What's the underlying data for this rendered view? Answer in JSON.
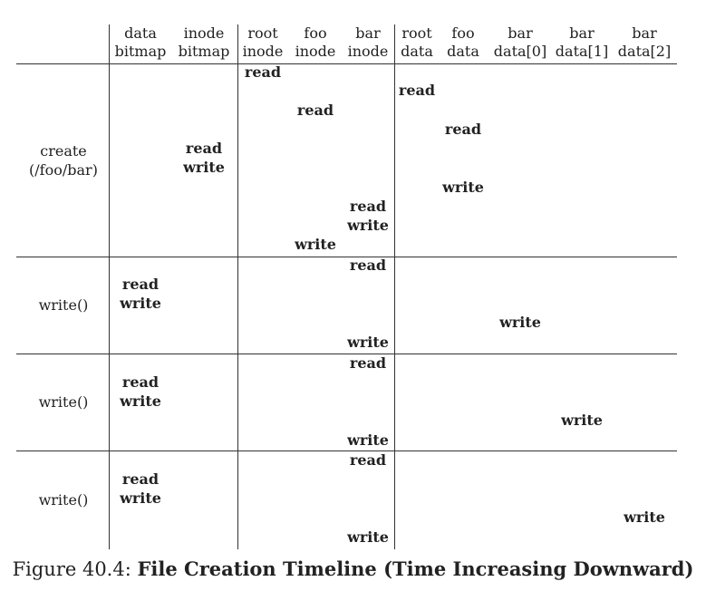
{
  "table": {
    "columns": [
      {
        "id": "data-bitmap",
        "line1": "data",
        "line2": "bitmap"
      },
      {
        "id": "inode-bitmap",
        "line1": "inode",
        "line2": "bitmap"
      },
      {
        "id": "root-inode",
        "line1": "root",
        "line2": "inode"
      },
      {
        "id": "foo-inode",
        "line1": "foo",
        "line2": "inode"
      },
      {
        "id": "bar-inode",
        "line1": "bar",
        "line2": "inode"
      },
      {
        "id": "root-data",
        "line1": "root",
        "line2": "data"
      },
      {
        "id": "foo-data",
        "line1": "foo",
        "line2": "data"
      },
      {
        "id": "bar-data0",
        "line1": "bar",
        "line2": "data[0]"
      },
      {
        "id": "bar-data1",
        "line1": "bar",
        "line2": "data[1]"
      },
      {
        "id": "bar-data2",
        "line1": "bar",
        "line2": "data[2]"
      }
    ],
    "groups": [
      {
        "label": [
          "create",
          "(/foo/bar)"
        ],
        "events": [
          {
            "col": 2,
            "ops": [
              "read"
            ]
          },
          {
            "col": 5,
            "ops": [
              "read"
            ]
          },
          {
            "col": 3,
            "ops": [
              "read"
            ]
          },
          {
            "col": 6,
            "ops": [
              "read"
            ]
          },
          {
            "col": 1,
            "ops": [
              "read",
              "write"
            ]
          },
          {
            "col": 6,
            "ops": [
              "write"
            ]
          },
          {
            "col": 4,
            "ops": [
              "read",
              "write"
            ]
          },
          {
            "col": 3,
            "ops": [
              "write"
            ]
          }
        ]
      },
      {
        "label": [
          "write()"
        ],
        "events": [
          {
            "col": 4,
            "ops": [
              "read"
            ]
          },
          {
            "col": 0,
            "ops": [
              "read",
              "write"
            ]
          },
          {
            "col": 7,
            "ops": [
              "write"
            ]
          },
          {
            "col": 4,
            "ops": [
              "write"
            ]
          }
        ]
      },
      {
        "label": [
          "write()"
        ],
        "events": [
          {
            "col": 4,
            "ops": [
              "read"
            ]
          },
          {
            "col": 0,
            "ops": [
              "read",
              "write"
            ]
          },
          {
            "col": 8,
            "ops": [
              "write"
            ]
          },
          {
            "col": 4,
            "ops": [
              "write"
            ]
          }
        ]
      },
      {
        "label": [
          "write()"
        ],
        "events": [
          {
            "col": 4,
            "ops": [
              "read"
            ]
          },
          {
            "col": 0,
            "ops": [
              "read",
              "write"
            ]
          },
          {
            "col": 9,
            "ops": [
              "write"
            ]
          },
          {
            "col": 4,
            "ops": [
              "write"
            ]
          }
        ]
      }
    ]
  },
  "caption": {
    "prefix": "Figure 40.4: ",
    "title": "File Creation Timeline (Time Increasing Downward)"
  }
}
